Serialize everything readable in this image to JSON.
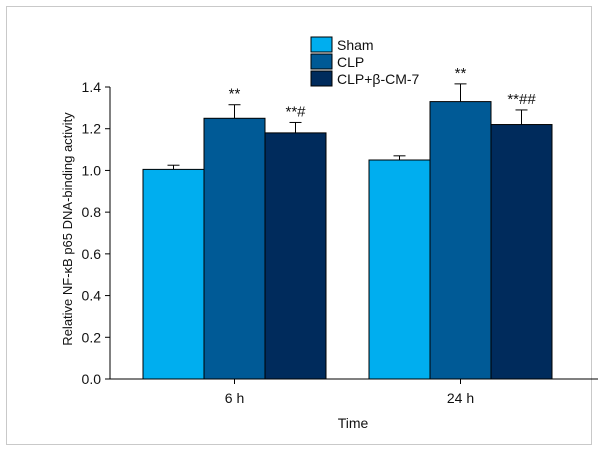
{
  "chart_data": {
    "type": "bar",
    "categories": [
      "6 h",
      "24 h"
    ],
    "series": [
      {
        "name": "Sham",
        "values": [
          1.005,
          1.05
        ],
        "errors": [
          0.02,
          0.02
        ],
        "annotation": [
          "",
          ""
        ],
        "color": "#00aeef"
      },
      {
        "name": "CLP",
        "values": [
          1.25,
          1.33
        ],
        "errors": [
          0.065,
          0.085
        ],
        "annotation": [
          "**",
          "**"
        ],
        "color": "#005a96"
      },
      {
        "name": "CLP+β-CM-7",
        "values": [
          1.18,
          1.22
        ],
        "errors": [
          0.05,
          0.07
        ],
        "annotation": [
          "**#",
          "**##"
        ],
        "color": "#002b5c"
      }
    ],
    "title": "",
    "xlabel": "Time",
    "ylabel": "Relative NF-κB p65 DNA-binding activity",
    "ylim": [
      0,
      1.4
    ],
    "yticks": [
      "0.0",
      "0.2",
      "0.4",
      "0.6",
      "0.8",
      "1.0",
      "1.2",
      "1.4"
    ],
    "grid": false,
    "legend_position": "top"
  }
}
